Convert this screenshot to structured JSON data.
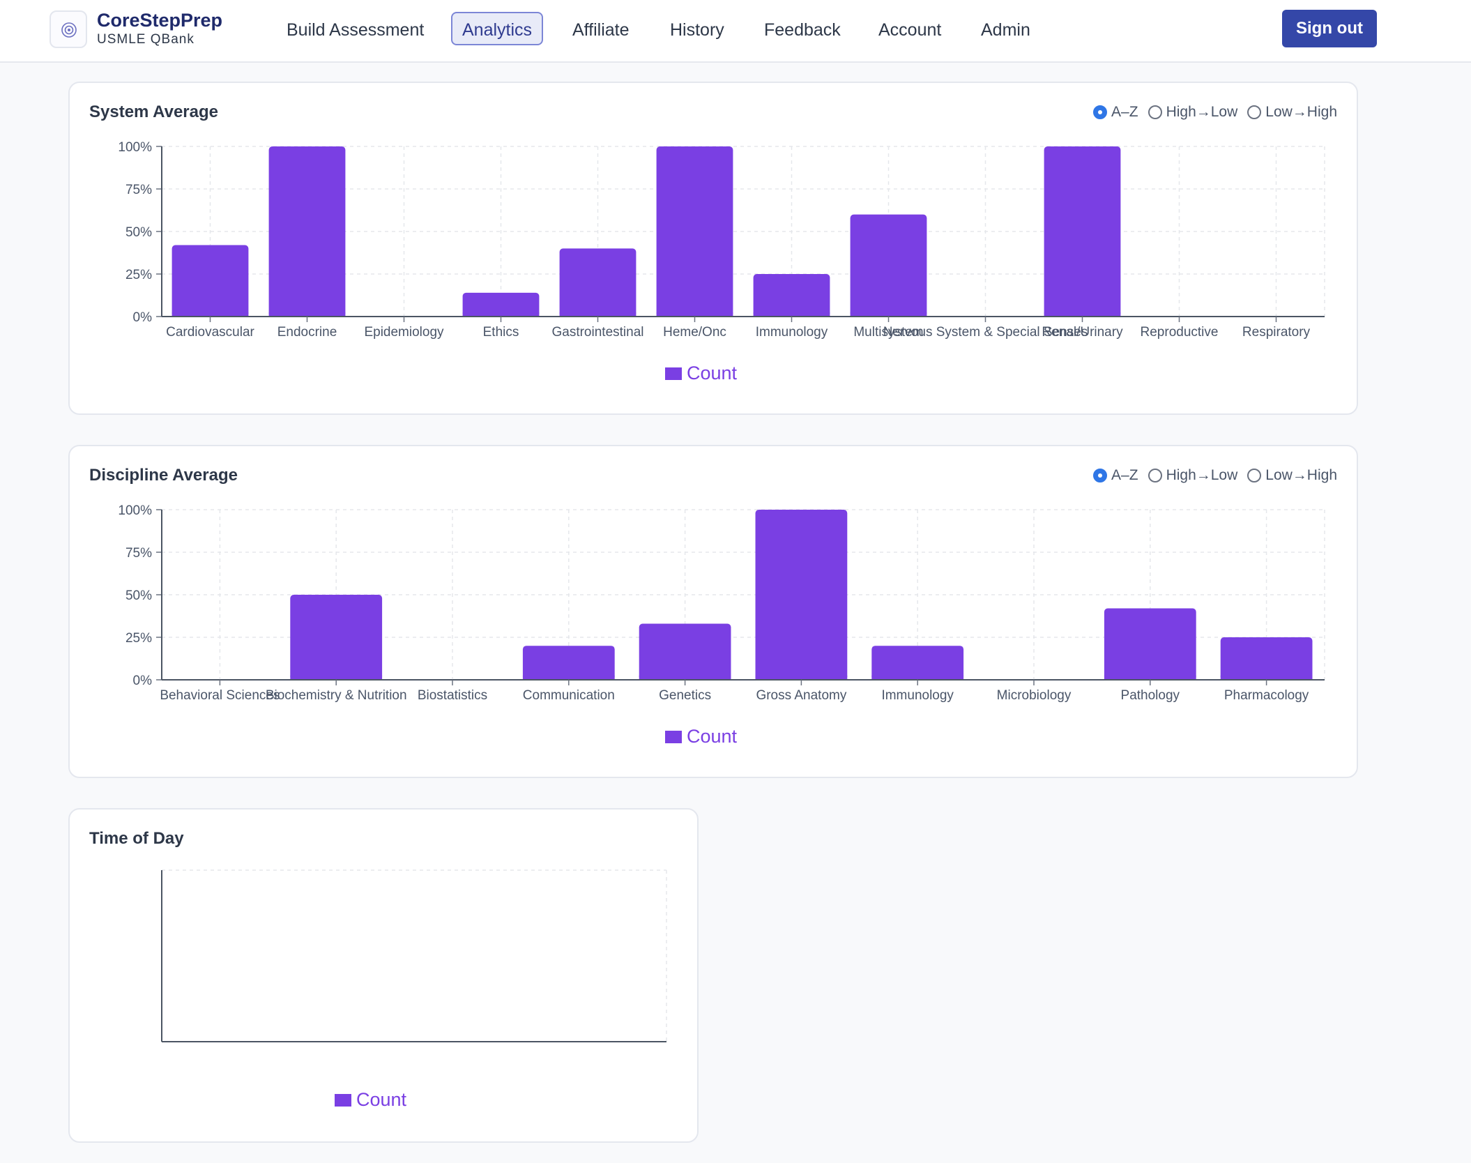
{
  "brand": {
    "name": "CoreStepPrep",
    "subtitle": "USMLE QBank",
    "logo_icon": "target-icon"
  },
  "nav": {
    "items": [
      {
        "label": "Build Assessment",
        "active": false
      },
      {
        "label": "Analytics",
        "active": true
      },
      {
        "label": "Affiliate",
        "active": false
      },
      {
        "label": "History",
        "active": false
      },
      {
        "label": "Feedback",
        "active": false
      },
      {
        "label": "Account",
        "active": false
      },
      {
        "label": "Admin",
        "active": false
      }
    ],
    "signout_label": "Sign out"
  },
  "sort_options": [
    "A–Z",
    "High→Low",
    "Low→High"
  ],
  "colors": {
    "bar": "#7a3fe3",
    "accent": "#3447a8",
    "radio": "#2f76e6"
  },
  "system_card": {
    "title": "System Average",
    "selected_sort": "A–Z",
    "legend": "Count"
  },
  "discipline_card": {
    "title": "Discipline Average",
    "selected_sort": "A–Z",
    "legend": "Count"
  },
  "time_card": {
    "title": "Time of Day",
    "legend": "Count"
  },
  "chart_data": [
    {
      "type": "bar",
      "title": "System Average",
      "categories": [
        "Cardiovascular",
        "Endocrine",
        "Epidemiology",
        "Ethics",
        "Gastrointestinal",
        "Heme/Onc",
        "Immunology",
        "Multisystem",
        "Nervous System & Special Senses",
        "Renal/Urinary",
        "Reproductive",
        "Respiratory"
      ],
      "series": [
        {
          "name": "Count",
          "values": [
            42,
            100,
            0,
            14,
            40,
            100,
            25,
            60,
            0,
            100,
            0,
            0
          ]
        }
      ],
      "ylim": [
        0,
        100
      ],
      "yticks": [
        "0%",
        "25%",
        "50%",
        "75%",
        "100%"
      ],
      "grid": true,
      "legend_position": "bottom"
    },
    {
      "type": "bar",
      "title": "Discipline Average",
      "categories": [
        "Behavioral Sciences",
        "Biochemistry & Nutrition",
        "Biostatistics",
        "Communication",
        "Genetics",
        "Gross Anatomy",
        "Immunology",
        "Microbiology",
        "Pathology",
        "Pharmacology"
      ],
      "series": [
        {
          "name": "Count",
          "values": [
            0,
            50,
            0,
            20,
            33,
            100,
            20,
            0,
            42,
            25
          ]
        }
      ],
      "ylim": [
        0,
        100
      ],
      "yticks": [
        "0%",
        "25%",
        "50%",
        "75%",
        "100%"
      ],
      "grid": true,
      "legend_position": "bottom"
    },
    {
      "type": "bar",
      "title": "Time of Day",
      "categories": [],
      "series": [
        {
          "name": "Count",
          "values": []
        }
      ],
      "grid": true,
      "legend_position": "bottom"
    }
  ]
}
